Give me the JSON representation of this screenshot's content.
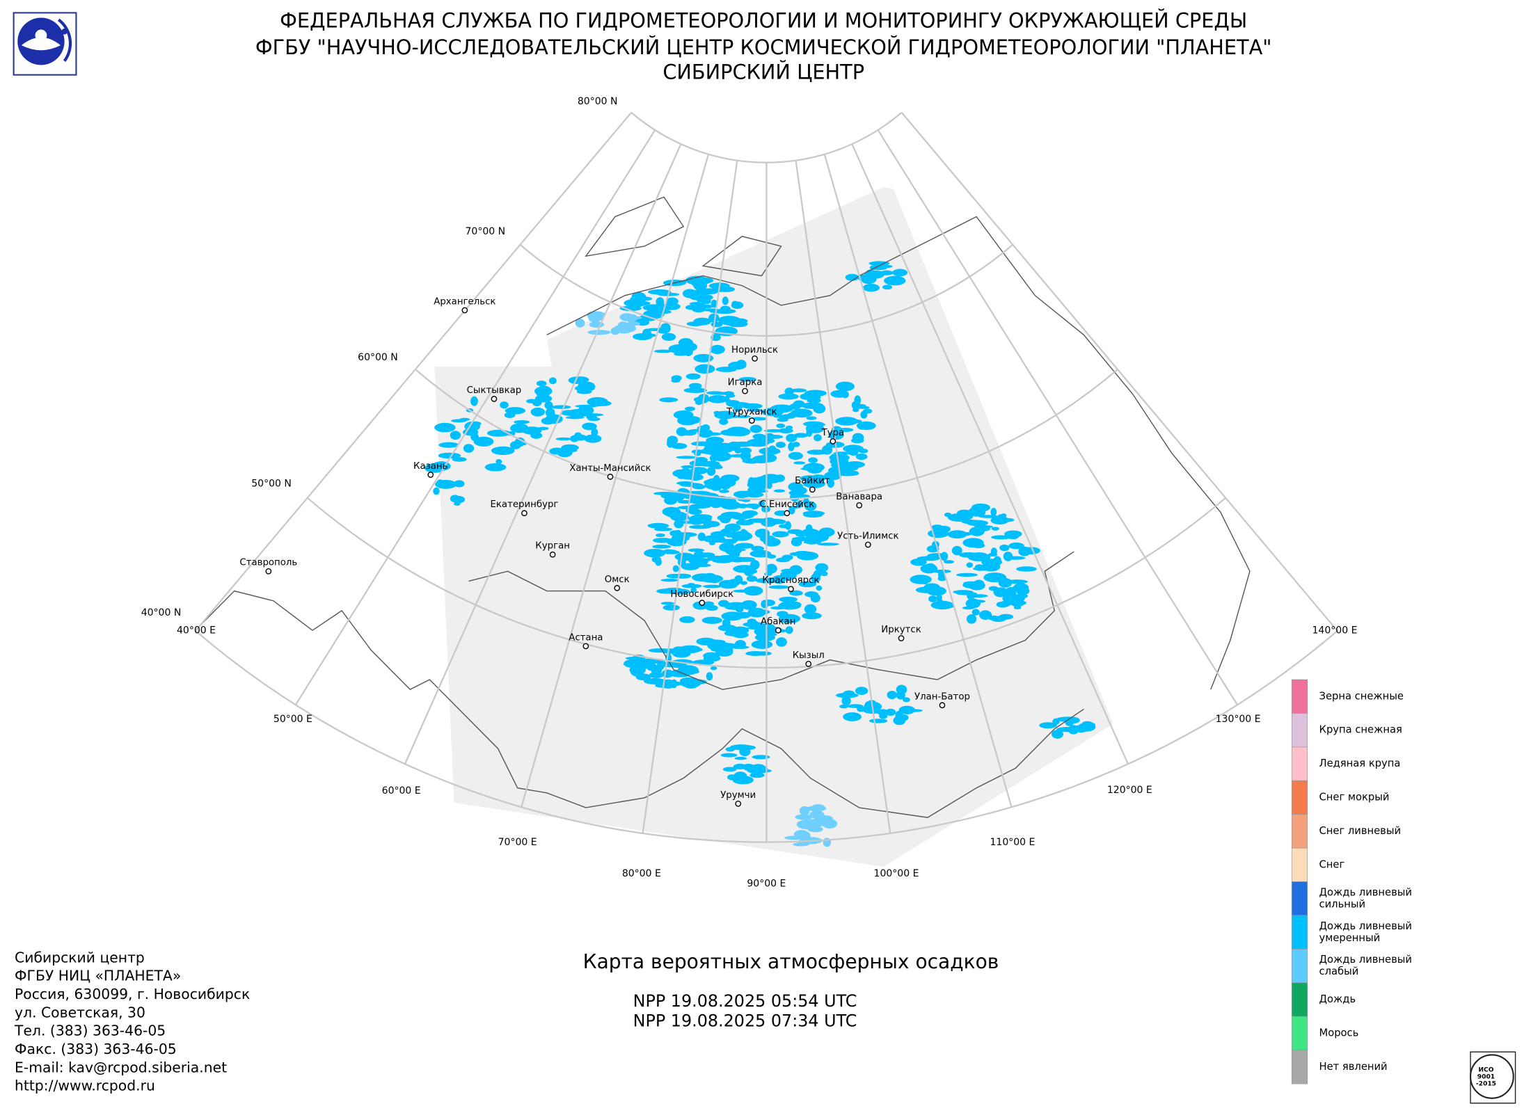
{
  "header": {
    "lines": [
      "ФЕДЕРАЛЬНАЯ СЛУЖБА ПО ГИДРОМЕТЕОРОЛОГИИ И МОНИТОРИНГУ ОКРУЖАЮЩЕЙ СРЕДЫ",
      "ФГБУ \"НАУЧНО-ИССЛЕДОВАТЕЛЬСКИЙ ЦЕНТР КОСМИЧЕСКОЙ ГИДРОМЕТЕОРОЛОГИИ \"ПЛАНЕТА\"",
      "СИБИРСКИЙ ЦЕНТР"
    ]
  },
  "map": {
    "latitude_labels": [
      "80°00 N",
      "70°00 N",
      "60°00 N",
      "50°00 N",
      "40°00 N"
    ],
    "longitude_labels": [
      "40°00 E",
      "50°00 E",
      "60°00 E",
      "70°00 E",
      "80°00 E",
      "90°00 E",
      "100°00 E",
      "110°00 E",
      "120°00 E",
      "130°00 E",
      "140°00 E"
    ],
    "cities": [
      "Архангельск",
      "Сыктывкар",
      "Казань",
      "Екатеринбург",
      "Ставрополь",
      "Курган",
      "Ханты-Мансийск",
      "Омск",
      "Астана",
      "Новосибирск",
      "Красноярск",
      "Абакан",
      "Кызыл",
      "Урумчи",
      "Норильск",
      "Игарка",
      "Туруханск",
      "Тура",
      "Байкит",
      "Ванавара",
      "С.Енисейск",
      "Усть-Илимск",
      "Иркутск",
      "Улан-Батор"
    ]
  },
  "legend": {
    "items": [
      {
        "label": [
          "Зерна снежные"
        ],
        "color": "#f0719a"
      },
      {
        "label": [
          "Крупа снежная"
        ],
        "color": "#dcc0dc"
      },
      {
        "label": [
          "Ледяная крупа"
        ],
        "color": "#ffc0cb"
      },
      {
        "label": [
          "Снег мокрый"
        ],
        "color": "#f47c4c"
      },
      {
        "label": [
          "Снег ливневый"
        ],
        "color": "#f5a27c"
      },
      {
        "label": [
          "Снег"
        ],
        "color": "#fcdcb8"
      },
      {
        "label": [
          "Дождь ливневый",
          "сильный"
        ],
        "color": "#1f6fe0"
      },
      {
        "label": [
          "Дождь ливневый",
          "умеренный"
        ],
        "color": "#00bfff"
      },
      {
        "label": [
          "Дождь ливневый",
          "слабый"
        ],
        "color": "#5ccbff"
      },
      {
        "label": [
          "Дождь"
        ],
        "color": "#10a860"
      },
      {
        "label": [
          "Морось"
        ],
        "color": "#40e584"
      },
      {
        "label": [
          "Нет явлений"
        ],
        "color": "#a8a8a8"
      }
    ]
  },
  "product": {
    "title": "Карта вероятных атмосферных осадков",
    "passes": [
      "NPP 19.08.2025  05:54 UTC",
      "NPP 19.08.2025  07:34 UTC"
    ]
  },
  "footer": {
    "lines": [
      "Сибирский центр",
      "ФГБУ НИЦ «ПЛАНЕТА»",
      "Россия, 630099, г. Новосибирск",
      "ул. Советская, 30",
      "Тел. (383) 363-46-05",
      "Факс. (383) 363-46-05",
      "E-mail: kav@rcpod.siberia.net",
      "http://www.rcpod.ru"
    ]
  },
  "badge": {
    "lines": [
      "ИСО",
      "9001",
      "-2015"
    ]
  }
}
